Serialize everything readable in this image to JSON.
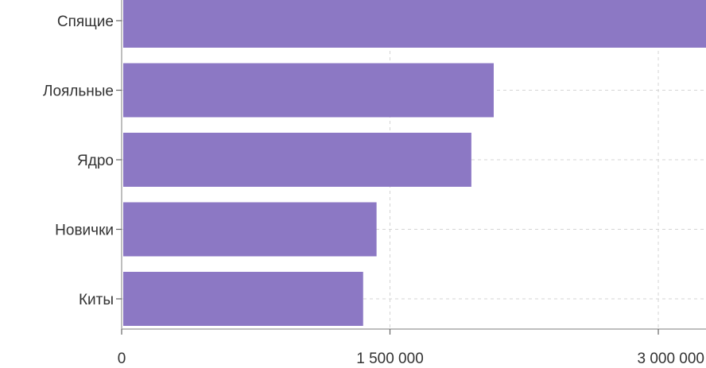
{
  "chart_data": {
    "type": "bar",
    "orientation": "horizontal",
    "categories": [
      "Спящие",
      "Лояльные",
      "Ядро",
      "Новички",
      "Киты"
    ],
    "values": [
      3300000,
      2080000,
      1955000,
      1425000,
      1350000
    ],
    "bar_color": "#8c78c4",
    "x_ticks": [
      {
        "value": 0,
        "label": "0"
      },
      {
        "value": 1500000,
        "label": "1 500 000"
      },
      {
        "value": 3000000,
        "label": "3 000 000"
      }
    ],
    "xlim": [
      0,
      3000000
    ],
    "grid": true,
    "title": "",
    "xlabel": "",
    "ylabel": ""
  }
}
